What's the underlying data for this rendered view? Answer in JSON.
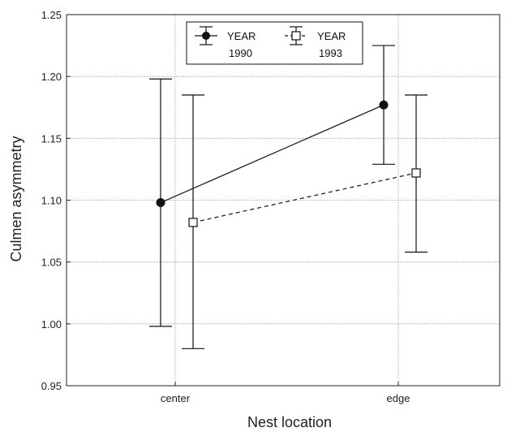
{
  "chart_data": {
    "type": "line",
    "title": "",
    "xlabel": "Nest location",
    "ylabel": "Culmen asymmetry",
    "categories": [
      "center",
      "edge"
    ],
    "ylim": [
      0.95,
      1.25
    ],
    "yticks": [
      "0.95",
      "1.00",
      "1.05",
      "1.10",
      "1.15",
      "1.20",
      "1.25"
    ],
    "grid": true,
    "legend_position": "top-center",
    "series": [
      {
        "name": "YEAR 1990",
        "legend_line1": "YEAR",
        "legend_line2": "1990",
        "marker": "filled-circle",
        "line_style": "solid",
        "values": [
          1.098,
          1.177
        ],
        "lower": [
          0.998,
          1.129
        ],
        "upper": [
          1.198,
          1.225
        ]
      },
      {
        "name": "YEAR 1993",
        "legend_line1": "YEAR",
        "legend_line2": "1993",
        "marker": "open-square",
        "line_style": "dashed",
        "values": [
          1.082,
          1.122
        ],
        "lower": [
          0.98,
          1.058
        ],
        "upper": [
          1.185,
          1.185
        ]
      }
    ],
    "colors": {
      "line": "#111111",
      "grid": "#9a9a9a",
      "frame": "#222222",
      "marker_fill_open": "#ffffff"
    }
  }
}
